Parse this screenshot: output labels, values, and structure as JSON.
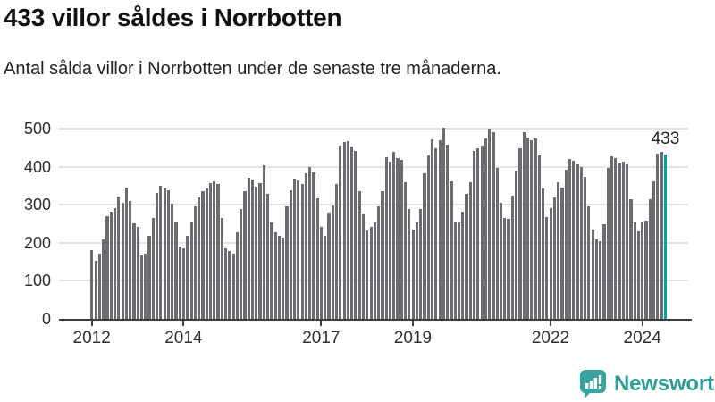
{
  "header": {
    "title": "433 villor såldes i Norrbotten",
    "subtitle": "Antal sålda villor i Norrbotten under de senaste tre månaderna."
  },
  "annotation": {
    "latest_value_label": "433"
  },
  "chart_data": {
    "type": "bar",
    "title": "433 villor såldes i Norrbotten",
    "subtitle": "Antal sålda villor i Norrbotten under de senaste tre månaderna.",
    "frequency": "monthly (rolling 3-month count of sold houses)",
    "start_period": "2012-01",
    "end_period": "2024-07",
    "x_tick_labels": [
      "2012",
      "2014",
      "2017",
      "2019",
      "2022",
      "2024"
    ],
    "x_tick_years": [
      2012,
      2014,
      2017,
      2019,
      2022,
      2024
    ],
    "y_tick_labels": [
      "0",
      "100",
      "200",
      "300",
      "400",
      "500"
    ],
    "y_ticks": [
      0,
      100,
      200,
      300,
      400,
      500
    ],
    "ylim": [
      0,
      520
    ],
    "grid": "horizontal",
    "bar_color": "#6c6c70",
    "highlight_color": "#00a2a4",
    "highlight_last_bar": true,
    "last_value": 433,
    "values": [
      181,
      153,
      171,
      210,
      271,
      281,
      292,
      321,
      306,
      345,
      311,
      252,
      243,
      167,
      172,
      218,
      265,
      331,
      350,
      345,
      338,
      303,
      257,
      190,
      186,
      218,
      257,
      296,
      320,
      335,
      343,
      357,
      363,
      355,
      265,
      185,
      179,
      172,
      227,
      288,
      337,
      371,
      367,
      347,
      358,
      405,
      328,
      253,
      227,
      218,
      214,
      296,
      339,
      368,
      365,
      355,
      382,
      400,
      386,
      318,
      243,
      218,
      280,
      298,
      355,
      457,
      465,
      467,
      453,
      441,
      337,
      277,
      233,
      243,
      253,
      296,
      337,
      425,
      414,
      439,
      422,
      418,
      359,
      288,
      235,
      253,
      290,
      382,
      429,
      473,
      449,
      470,
      504,
      459,
      363,
      257,
      253,
      281,
      329,
      359,
      441,
      449,
      457,
      475,
      500,
      490,
      398,
      306,
      265,
      263,
      324,
      390,
      449,
      490,
      478,
      470,
      475,
      430,
      342,
      269,
      291,
      320,
      360,
      345,
      392,
      420,
      415,
      406,
      400,
      373,
      295,
      234,
      210,
      205,
      250,
      397,
      428,
      423,
      408,
      414,
      406,
      314,
      253,
      230,
      256,
      259,
      314,
      363,
      434,
      439,
      433
    ]
  },
  "footer": {
    "brand": "Newsworthy",
    "brand_color": "#2d9d99",
    "logo_icon": "bar-chart-speech-bubble",
    "logo_color": "#3aa29f"
  }
}
